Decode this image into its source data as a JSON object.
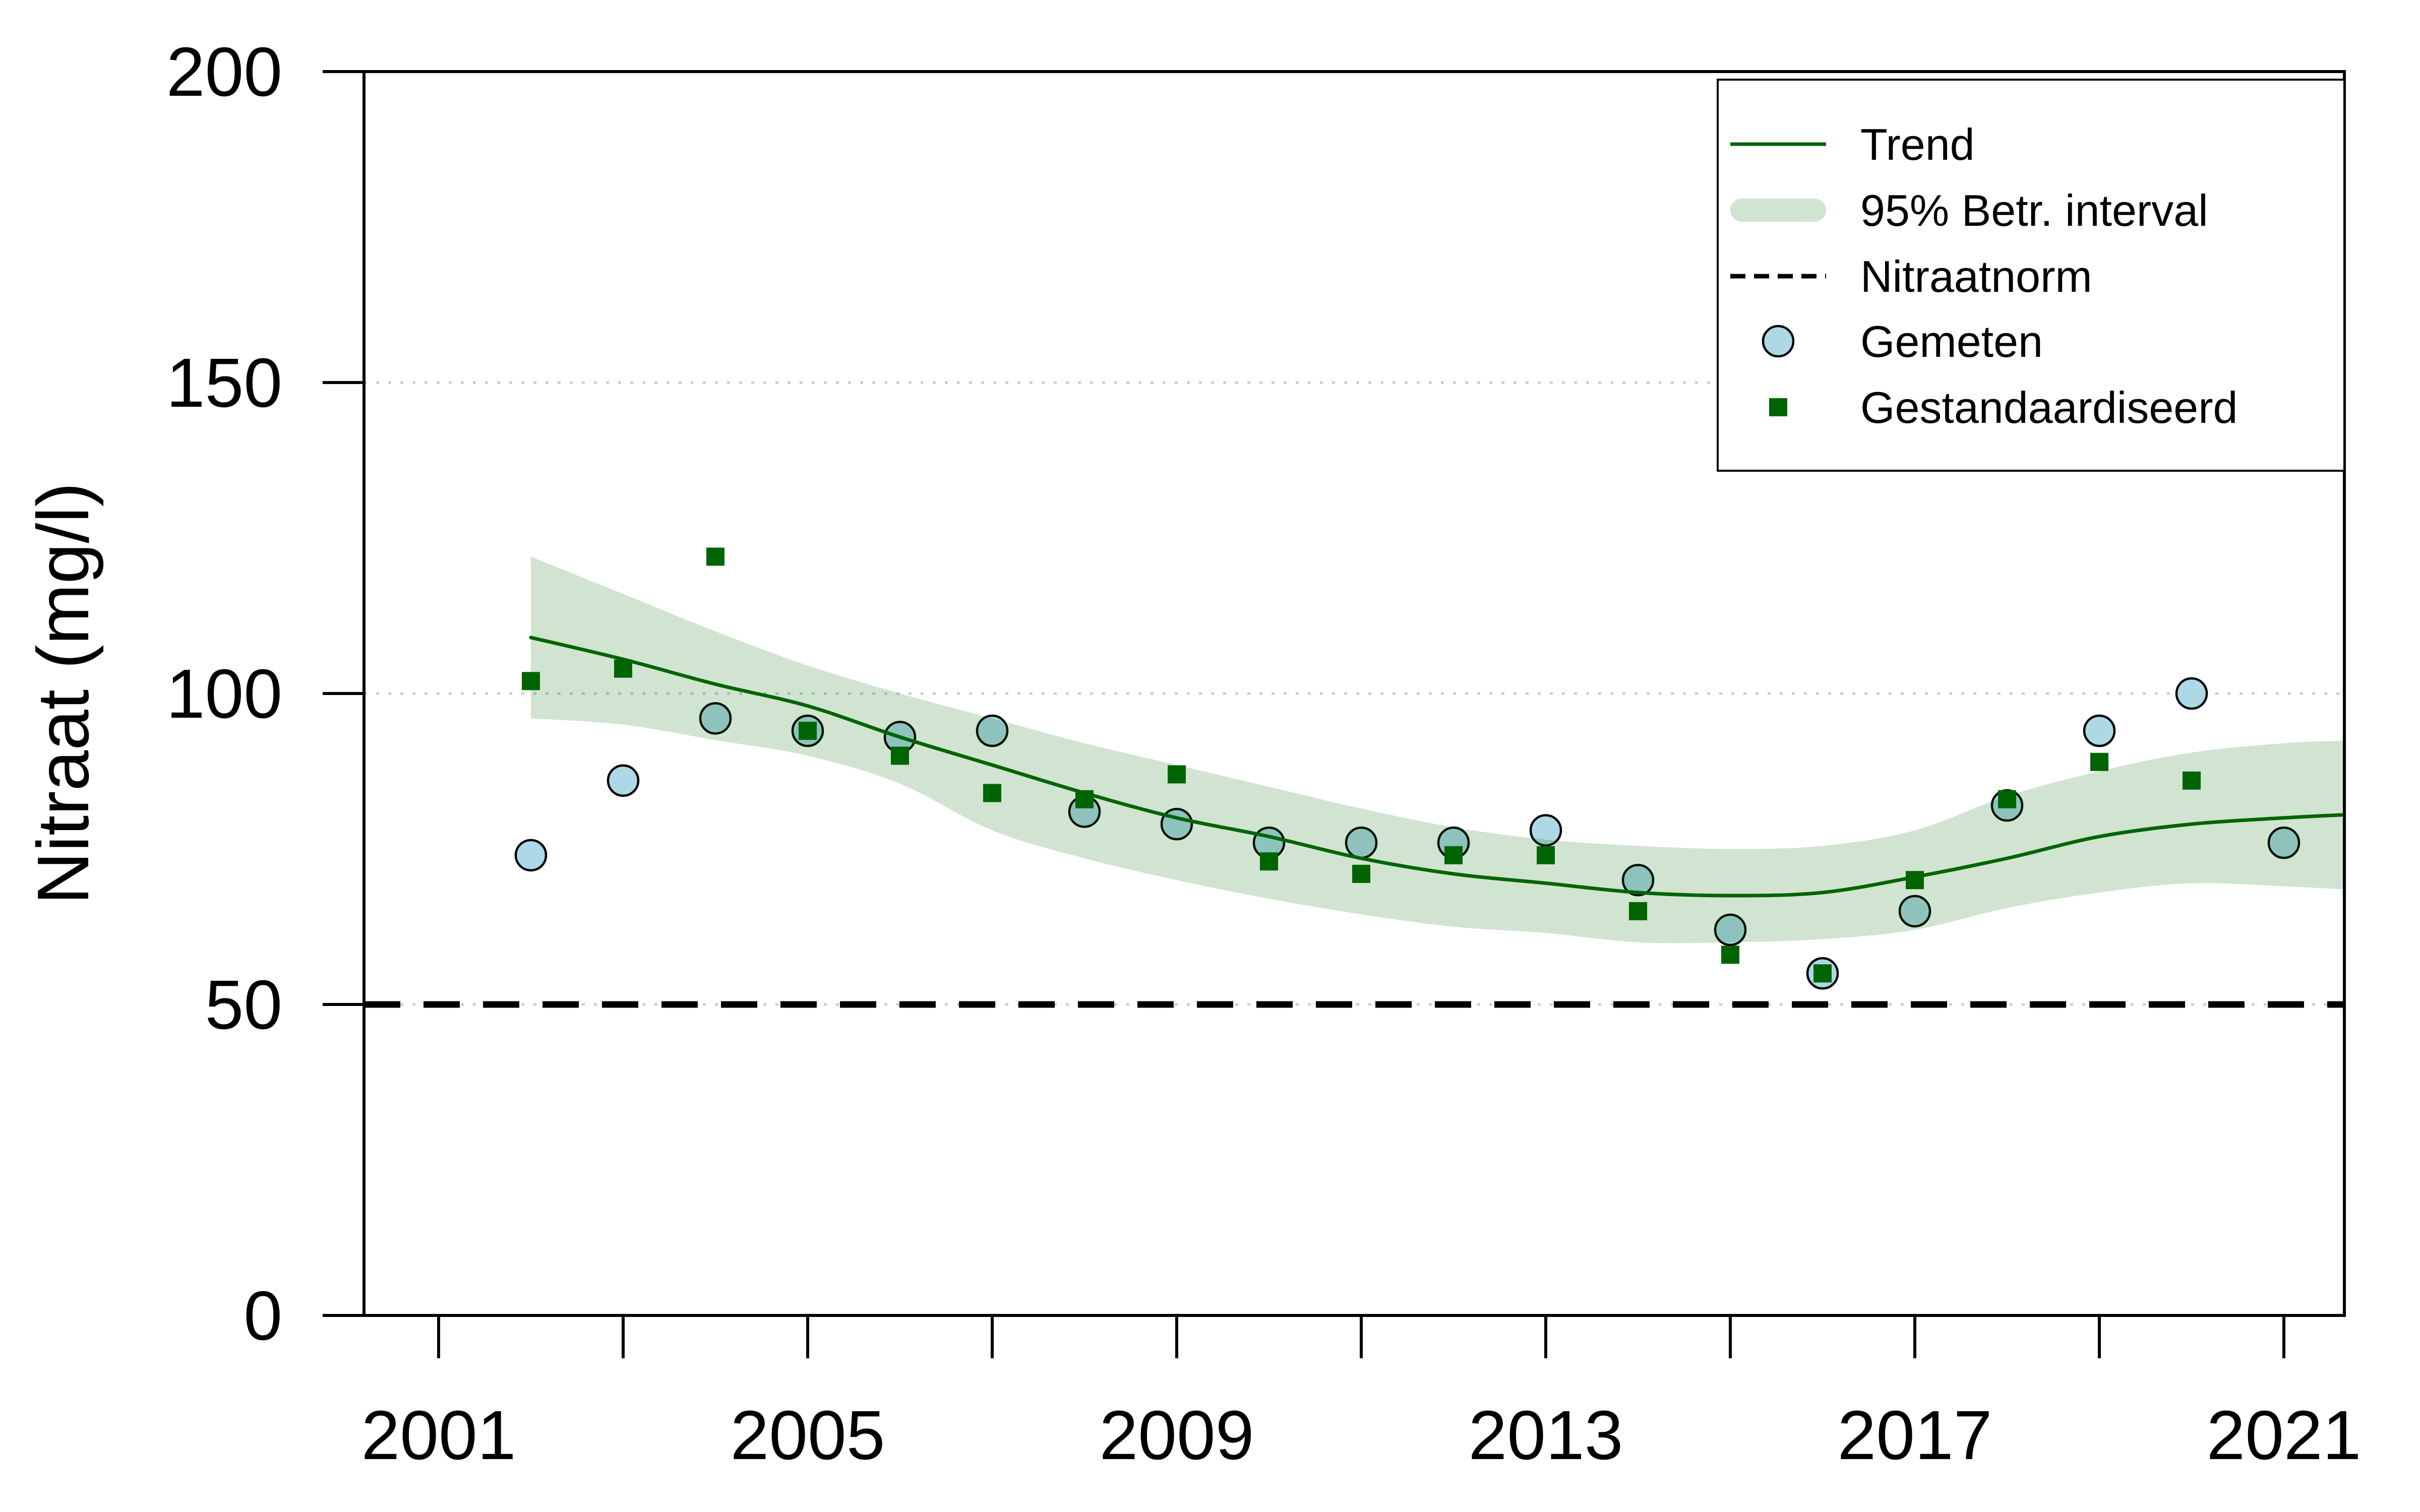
{
  "chart_data": {
    "type": "scatter",
    "title": "",
    "xlabel": "",
    "ylabel": "Nitraat (mg/l)",
    "ylim": [
      0,
      200
    ],
    "xlim": [
      2000.2,
      2021.7
    ],
    "grid": "dotted-horizontal",
    "y_ticks": [
      0,
      50,
      100,
      150,
      200
    ],
    "x_ticks": [
      2001,
      2003,
      2005,
      2007,
      2009,
      2011,
      2013,
      2015,
      2017,
      2019,
      2021
    ],
    "x_labeled_ticks": [
      2001,
      2005,
      2009,
      2013,
      2017,
      2021
    ],
    "years": [
      2002,
      2003,
      2004,
      2005,
      2006,
      2007,
      2008,
      2009,
      2010,
      2011,
      2012,
      2013,
      2014,
      2015,
      2016,
      2017,
      2018,
      2019,
      2020,
      2021
    ],
    "series": [
      {
        "name": "Gemeten",
        "type": "scatter",
        "marker": "circle",
        "color": "#ADD8E6",
        "values": [
          74,
          86,
          96,
          94,
          93,
          94,
          81,
          79,
          76,
          76,
          76,
          78,
          70,
          62,
          55,
          65,
          82,
          94,
          100,
          76
        ]
      },
      {
        "name": "Gestandaardiseerd",
        "type": "scatter",
        "marker": "square",
        "color": "#006400",
        "values": [
          102,
          104,
          122,
          94,
          90,
          84,
          83,
          87,
          73,
          71,
          74,
          74,
          65,
          58,
          55,
          70,
          83,
          89,
          86,
          null
        ]
      },
      {
        "name": "Trend",
        "type": "line",
        "color": "#006400",
        "x": [
          2002,
          2003,
          2004,
          2005,
          2006,
          2007,
          2008,
          2009,
          2010,
          2011,
          2012,
          2013,
          2014,
          2015,
          2016,
          2017,
          2018,
          2019,
          2020,
          2021,
          2021.7
        ],
        "values": [
          109,
          105.5,
          101.5,
          98,
          93,
          88.5,
          84,
          80,
          77,
          73.5,
          71,
          69.5,
          68,
          67.5,
          68,
          70.5,
          73.5,
          77,
          79,
          80,
          80.5
        ]
      },
      {
        "name": "95% Betr. interval",
        "type": "band",
        "color": "rgba(0,100,0,0.18)",
        "x": [
          2002,
          2003,
          2004,
          2005,
          2006,
          2007,
          2008,
          2009,
          2010,
          2011,
          2012,
          2013,
          2014,
          2015,
          2016,
          2017,
          2018,
          2019,
          2020,
          2021,
          2021.7
        ],
        "upper": [
          122,
          116,
          110,
          104.5,
          100,
          96,
          92,
          88.5,
          85,
          81.5,
          78.5,
          76.5,
          75.5,
          75,
          75.5,
          78,
          83.5,
          87.5,
          90.5,
          92,
          92.4
        ],
        "lower": [
          96,
          95,
          92.5,
          90,
          85.5,
          78,
          73.5,
          70,
          67,
          64.5,
          62.5,
          61.5,
          60,
          60,
          60.5,
          62,
          65.5,
          68,
          69.5,
          69,
          68.5
        ]
      }
    ],
    "norm_line": {
      "label": "Nitraatnorm",
      "value": 50,
      "color": "#000000",
      "style": "dashed"
    },
    "legend": {
      "position": "top-right",
      "items": [
        {
          "label": "Trend",
          "type": "line",
          "color": "#006400"
        },
        {
          "label": "95% Betr. interval",
          "type": "band",
          "color": "rgba(0,100,0,0.18)"
        },
        {
          "label": "Nitraatnorm",
          "type": "dashed-line",
          "color": "#000000"
        },
        {
          "label": "Gemeten",
          "type": "circle",
          "color": "#ADD8E6"
        },
        {
          "label": "Gestandaardiseerd",
          "type": "square",
          "color": "#006400"
        }
      ]
    },
    "colors": {
      "background": "#ffffff",
      "axis": "#000000",
      "gridline": "#cccccc",
      "trend": "#006400",
      "band": "rgba(0,100,0,0.18)",
      "gemeten_fill": "#ADD8E6",
      "gemeten_stroke": "#000000",
      "gestandaardiseerd": "#006400",
      "norm": "#000000"
    }
  }
}
